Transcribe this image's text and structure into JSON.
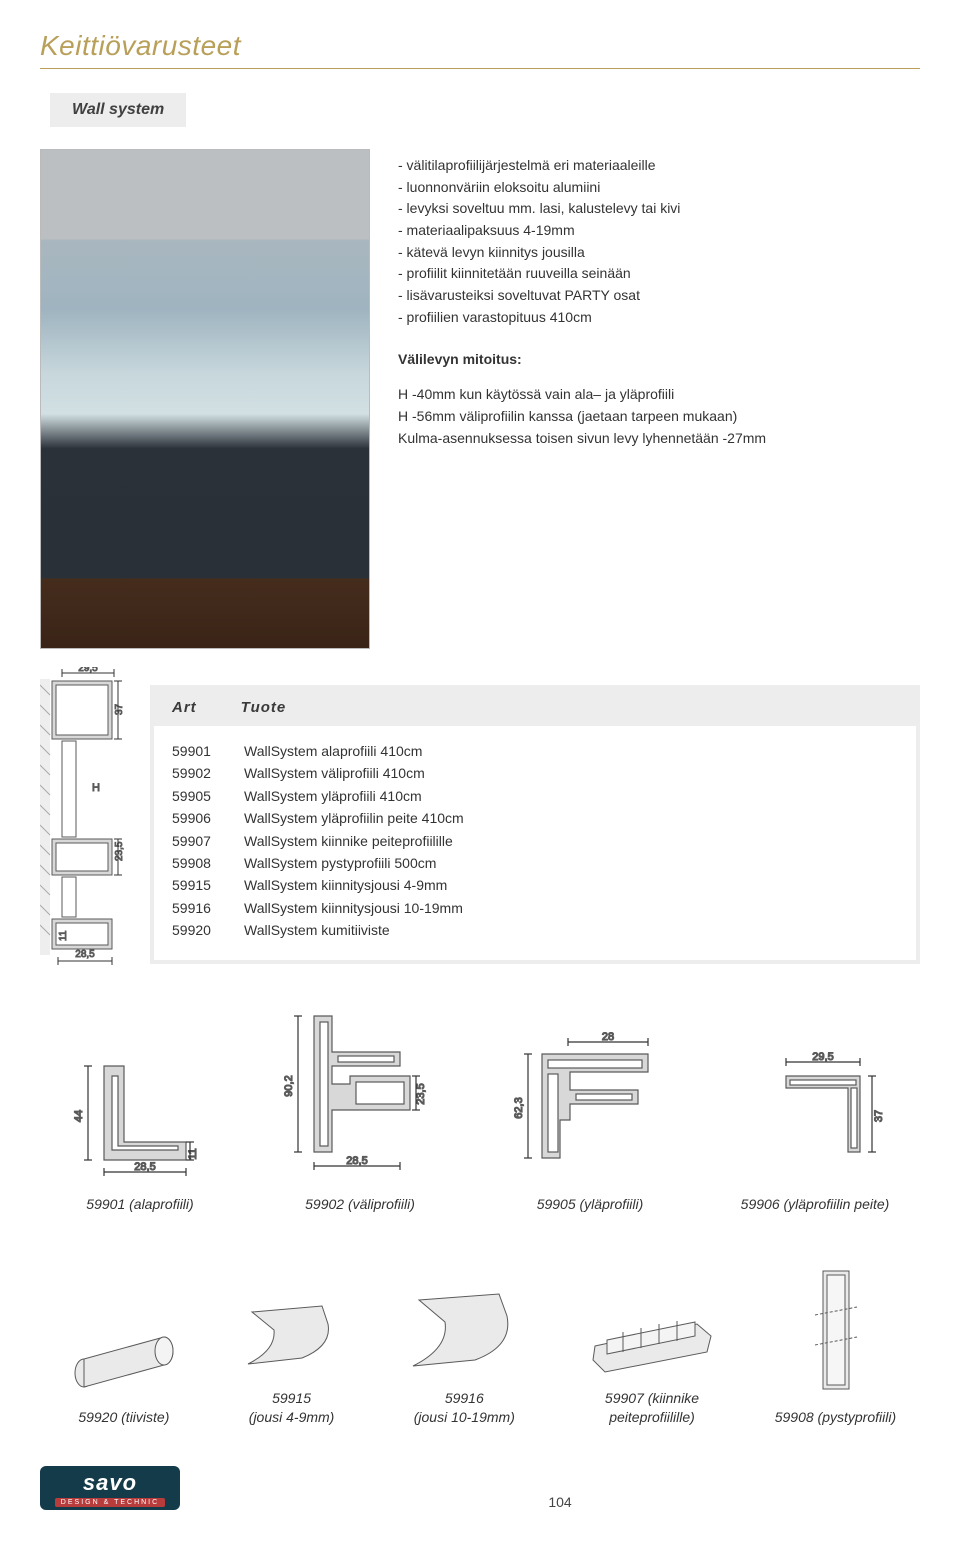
{
  "page": {
    "title": "Keittiövarusteet",
    "subtitle": "Wall system",
    "page_number": "104"
  },
  "description": {
    "bullets": [
      "- välitilaprofiilijärjestelmä eri materiaaleille",
      "- luonnonväriin eloksoitu alumiini",
      "- levyksi soveltuu mm. lasi, kalustelevy tai kivi",
      "- materiaalipaksuus 4-19mm",
      "- kätevä levyn kiinnitys jousilla",
      "- profiilit kiinnitetään ruuveilla seinään",
      "- lisävarusteiksi soveltuvat PARTY osat",
      "- profiilien varastopituus 410cm"
    ],
    "mitoitus_heading": "Välilevyn mitoitus:",
    "mitoitus_lines": [
      "H -40mm kun käytössä vain ala– ja yläprofiili",
      "H -56mm väliprofiilin kanssa (jaetaan tarpeen mukaan)",
      "Kulma-asennuksessa toisen sivun levy lyhennetään -27mm"
    ]
  },
  "art_table": {
    "head_col1": "Art",
    "head_col2": "Tuote",
    "rows": [
      {
        "art": "59901",
        "tuote": "WallSystem alaprofiili 410cm"
      },
      {
        "art": "59902",
        "tuote": "WallSystem väliprofiili 410cm"
      },
      {
        "art": "59905",
        "tuote": "WallSystem yläprofiili 410cm"
      },
      {
        "art": "59906",
        "tuote": "WallSystem yläprofiilin peite 410cm"
      },
      {
        "art": "59907",
        "tuote": "WallSystem kiinnike peiteprofiilille"
      },
      {
        "art": "59908",
        "tuote": "WallSystem pystyprofiili 500cm"
      },
      {
        "art": "59915",
        "tuote": "WallSystem kiinnitysjousi 4-9mm"
      },
      {
        "art": "59916",
        "tuote": "WallSystem kiinnitysjousi 10-19mm"
      },
      {
        "art": "59920",
        "tuote": "WallSystem kumitiiviste"
      }
    ]
  },
  "cross_section": {
    "dims": {
      "top_w": "29,5",
      "top_h": "37",
      "mid_h": "23,5",
      "H": "H",
      "bot_h": "11",
      "bot_w": "28,5"
    },
    "stroke": "#5a5a5a",
    "fill": "#d8d8d8"
  },
  "profiles": [
    {
      "caption": "59901 (alaprofiili)",
      "dims": {
        "w": "28,5",
        "h_outer": "44",
        "h_inner": "11"
      }
    },
    {
      "caption": "59902 (väliprofiili)",
      "dims": {
        "w": "28,5",
        "h": "90,2",
        "slot": "23,5"
      }
    },
    {
      "caption": "59905 (yläprofiili)",
      "dims": {
        "w": "28",
        "h": "62,3"
      }
    },
    {
      "caption": "59906 (yläprofiilin peite)",
      "dims": {
        "w": "29,5",
        "h": "37"
      }
    }
  ],
  "parts": [
    {
      "caption": "59920 (tiiviste)"
    },
    {
      "caption": "59915\n(jousi 4-9mm)"
    },
    {
      "caption": "59916\n(jousi 10-19mm)"
    },
    {
      "caption": "59907 (kiinnike peiteprofiilille)"
    },
    {
      "caption": "59908 (pystyprofiili)"
    }
  ],
  "logo": {
    "main": "savo",
    "sub": "DESIGN & TECHNIC"
  },
  "colors": {
    "accent": "#b9a05a",
    "box_bg": "#ededed",
    "svg_stroke": "#5a5a5a",
    "svg_fill": "#d8d8d8",
    "svg_dim": "#333333"
  }
}
